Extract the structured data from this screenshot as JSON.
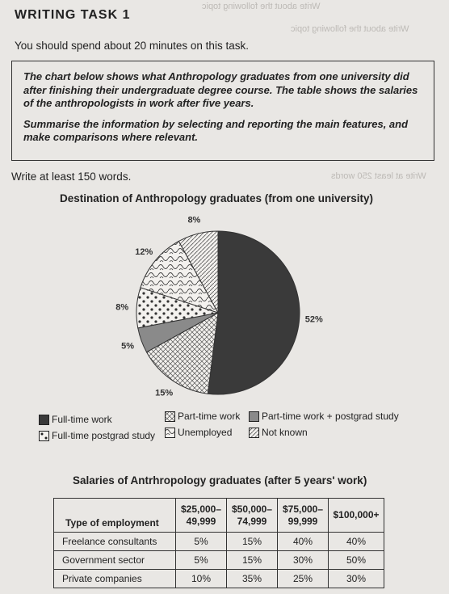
{
  "page": {
    "heading": "WRITING TASK 1",
    "instruction": "You should spend about 20 minutes on this task.",
    "task_text_1": "The chart below shows what Anthropology graduates from one university did after finishing their undergraduate degree course. The table shows the salaries of the anthropologists in work after five years.",
    "task_text_2": "Summarise the information by selecting and reporting the main features, and make comparisons where relevant.",
    "word_count": "Write at least 150 words."
  },
  "chart_data": {
    "type": "pie",
    "title": "Destination of Anthropology graduates (from one university)",
    "slices": [
      {
        "name": "Full-time work",
        "value": 52,
        "label": "52%",
        "pattern": "solid"
      },
      {
        "name": "Part-time work",
        "value": 15,
        "label": "15%",
        "pattern": "crosshatch"
      },
      {
        "name": "Part-time work + postgrad study",
        "value": 5,
        "label": "5%",
        "pattern": "grey"
      },
      {
        "name": "Full-time postgrad study",
        "value": 8,
        "label": "8%",
        "pattern": "dots"
      },
      {
        "name": "Unemployed",
        "value": 12,
        "label": "12%",
        "pattern": "squiggle"
      },
      {
        "name": "Not known",
        "value": 8,
        "label": "8%",
        "pattern": "diagonal"
      }
    ],
    "legend_order": [
      "Full-time work",
      "Part-time work",
      "Part-time work + postgrad study",
      "Full-time postgrad study",
      "Unemployed",
      "Not known"
    ],
    "legend_placement": "bottom"
  },
  "table": {
    "title": "Salaries of Antrhropology graduates (after 5 years' work)",
    "header_first": "Type of employment",
    "columns": [
      "$25,000–\n49,999",
      "$50,000–\n74,999",
      "$75,000–\n99,999",
      "$100,000+"
    ],
    "rows": [
      {
        "type": "Freelance consultants",
        "values": [
          "5%",
          "15%",
          "40%",
          "40%"
        ]
      },
      {
        "type": "Government sector",
        "values": [
          "5%",
          "15%",
          "30%",
          "50%"
        ]
      },
      {
        "type": "Private companies",
        "values": [
          "10%",
          "35%",
          "25%",
          "30%"
        ]
      }
    ]
  },
  "colors": {
    "solid": "#3a3a3a",
    "grey": "#8a8a8a",
    "paper": "#e9e7e4",
    "ink": "#222222"
  }
}
